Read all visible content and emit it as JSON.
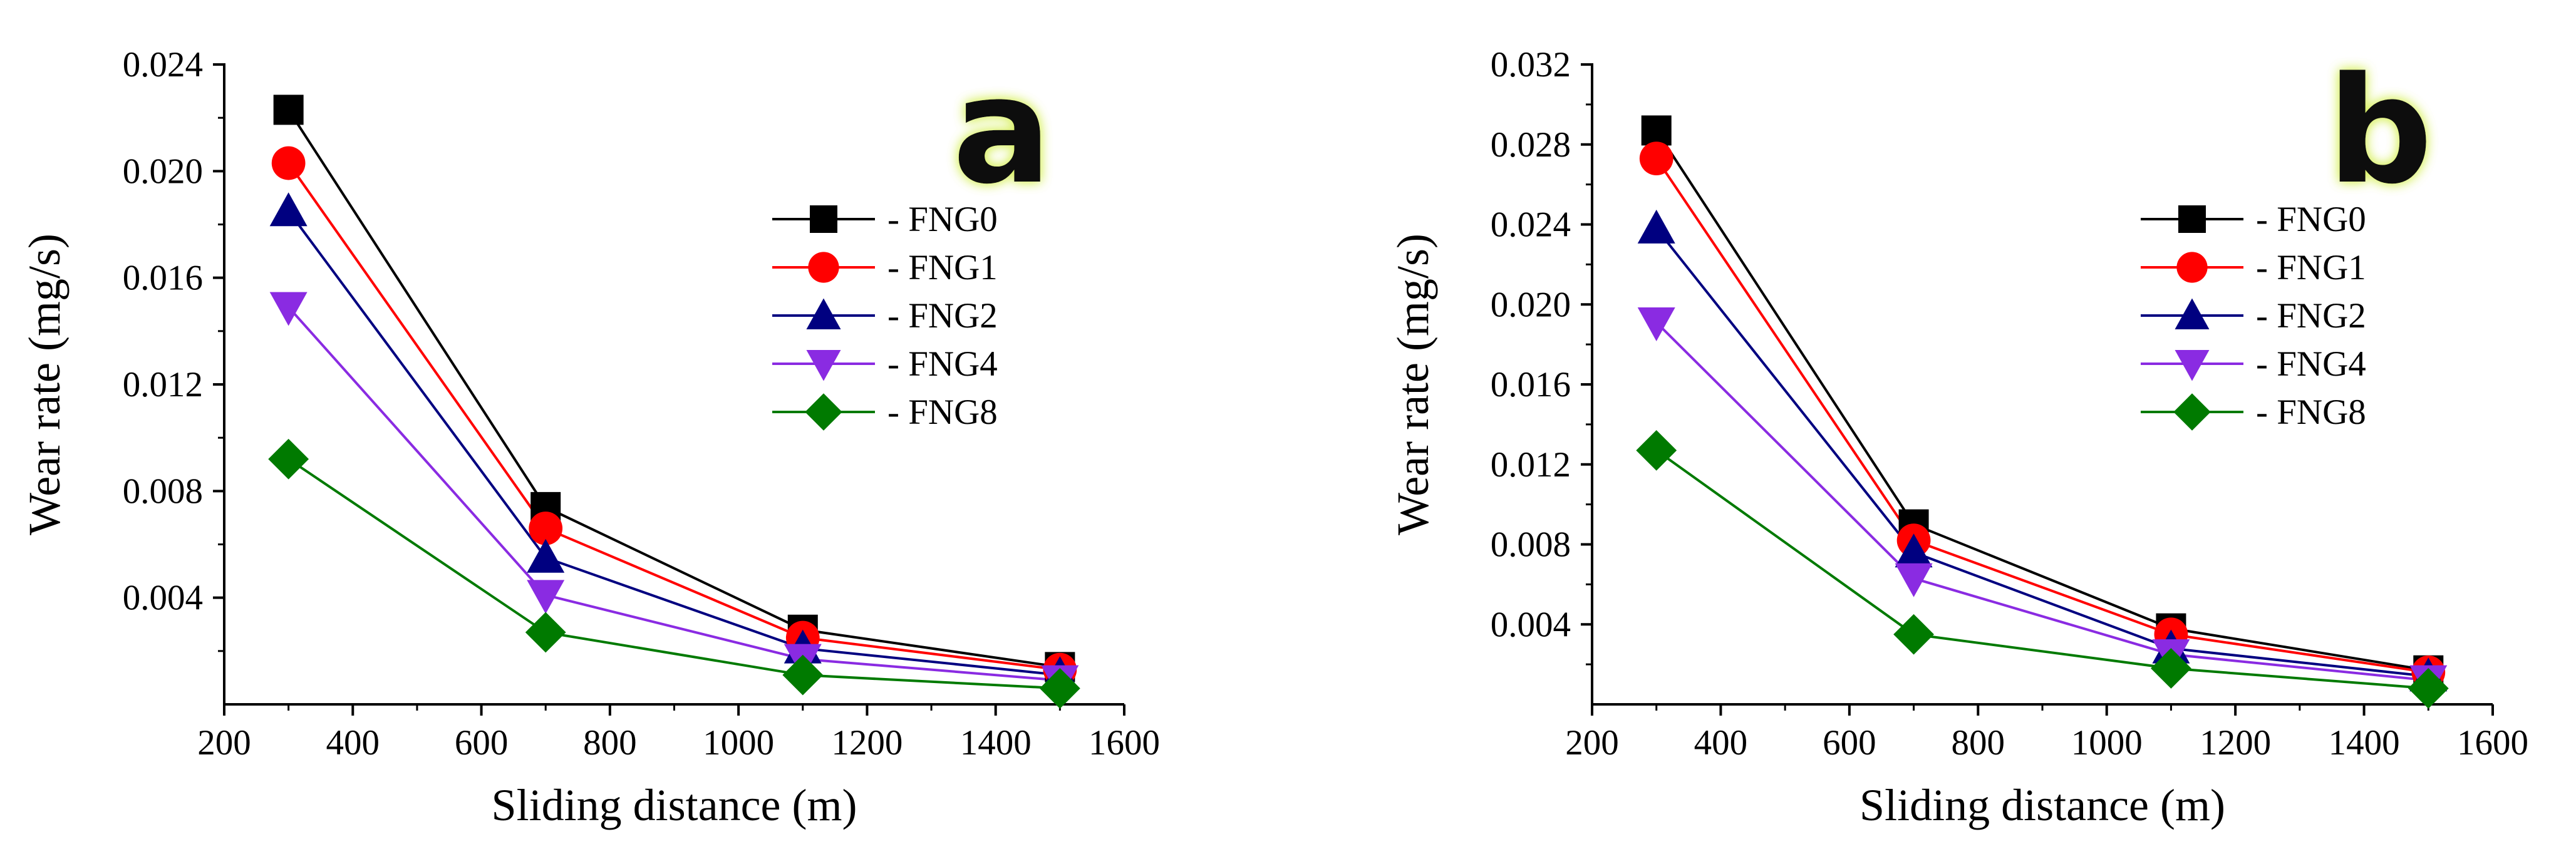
{
  "chart_data": [
    {
      "type": "line",
      "panel_label": "a",
      "xlabel": "Sliding distance (m)",
      "ylabel": "Wear rate (mg/s)",
      "xlim": [
        200,
        1600
      ],
      "ylim": [
        0,
        0.024
      ],
      "xticks": [
        "200",
        "400",
        "600",
        "800",
        "1000",
        "1200",
        "1400",
        "1600"
      ],
      "yticks": [
        "0.004",
        "0.008",
        "0.012",
        "0.016",
        "0.020",
        "0.024"
      ],
      "x": [
        300,
        700,
        1100,
        1500
      ],
      "legend_position": "upper-right",
      "series": [
        {
          "name": "- FNG0",
          "color": "#000000",
          "marker": "square",
          "values": [
            0.0223,
            0.0074,
            0.0028,
            0.0014
          ]
        },
        {
          "name": "- FNG1",
          "color": "#ff0000",
          "marker": "circle",
          "values": [
            0.0203,
            0.0066,
            0.0025,
            0.0013
          ]
        },
        {
          "name": "- FNG2",
          "color": "#000080",
          "marker": "triangle-up",
          "values": [
            0.0185,
            0.0055,
            0.0021,
            0.0011
          ]
        },
        {
          "name": "- FNG4",
          "color": "#8a2be2",
          "marker": "triangle-down",
          "values": [
            0.0149,
            0.0041,
            0.0017,
            0.0009
          ]
        },
        {
          "name": "- FNG8",
          "color": "#007a00",
          "marker": "diamond",
          "values": [
            0.0092,
            0.0027,
            0.0011,
            0.0006
          ]
        }
      ]
    },
    {
      "type": "line",
      "panel_label": "b",
      "xlabel": "Sliding distance (m)",
      "ylabel": "Wear rate (mg/s)",
      "xlim": [
        200,
        1600
      ],
      "ylim": [
        0,
        0.032
      ],
      "xticks": [
        "200",
        "400",
        "600",
        "800",
        "1000",
        "1200",
        "1400",
        "1600"
      ],
      "yticks": [
        "0.004",
        "0.008",
        "0.012",
        "0.016",
        "0.020",
        "0.024",
        "0.028",
        "0.032"
      ],
      "x": [
        300,
        700,
        1100,
        1500
      ],
      "legend_position": "upper-right",
      "series": [
        {
          "name": "- FNG0",
          "color": "#000000",
          "marker": "square",
          "values": [
            0.0287,
            0.009,
            0.0038,
            0.0017
          ]
        },
        {
          "name": "- FNG1",
          "color": "#ff0000",
          "marker": "circle",
          "values": [
            0.0273,
            0.0082,
            0.0035,
            0.0016
          ]
        },
        {
          "name": "- FNG2",
          "color": "#000080",
          "marker": "triangle-up",
          "values": [
            0.0238,
            0.0076,
            0.0028,
            0.0014
          ]
        },
        {
          "name": "- FNG4",
          "color": "#8a2be2",
          "marker": "triangle-down",
          "values": [
            0.0191,
            0.0063,
            0.0025,
            0.0012
          ]
        },
        {
          "name": "- FNG8",
          "color": "#007a00",
          "marker": "diamond",
          "values": [
            0.0127,
            0.0035,
            0.0018,
            0.0008
          ]
        }
      ]
    }
  ]
}
